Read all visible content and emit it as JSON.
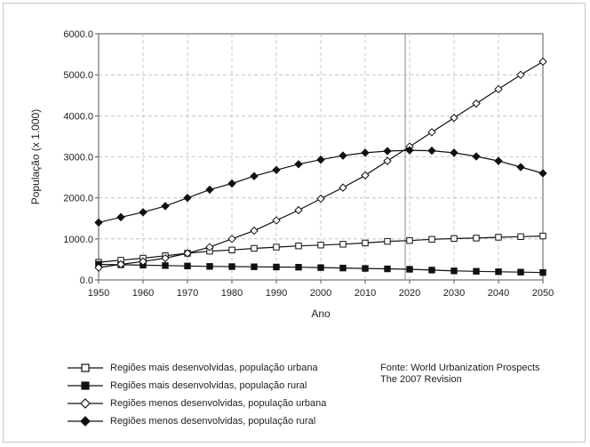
{
  "chart_data": {
    "type": "line",
    "title": "",
    "xlabel": "Ano",
    "ylabel": "População (x 1.000)",
    "xlim": [
      1950,
      2050
    ],
    "ylim": [
      0,
      6000
    ],
    "x_ticks": [
      "1950",
      "1960",
      "1970",
      "1980",
      "1990",
      "2000",
      "2010",
      "2020",
      "2030",
      "2040",
      "2050"
    ],
    "y_ticks": [
      "0.0",
      "1000.0",
      "2000.0",
      "3000.0",
      "4000.0",
      "5000.0",
      "6000.0"
    ],
    "grid": true,
    "vertical_marker_x": 2019,
    "x": [
      1950,
      1955,
      1960,
      1965,
      1970,
      1975,
      1980,
      1985,
      1990,
      1995,
      2000,
      2005,
      2010,
      2015,
      2020,
      2025,
      2030,
      2035,
      2040,
      2045,
      2050
    ],
    "series": [
      {
        "name": "Regiões mais desenvolvidas, população urbana",
        "marker": "open-square",
        "values": [
          430,
          480,
          530,
          590,
          650,
          700,
          730,
          770,
          800,
          830,
          850,
          870,
          900,
          940,
          960,
          990,
          1010,
          1020,
          1040,
          1055,
          1070
        ]
      },
      {
        "name": "Regiões mais desenvolvidas, população rural",
        "marker": "filled-square",
        "values": [
          380,
          370,
          360,
          350,
          340,
          330,
          325,
          320,
          315,
          310,
          300,
          290,
          280,
          270,
          260,
          240,
          220,
          210,
          200,
          190,
          180
        ]
      },
      {
        "name": "Regiões menos desenvolvidas, população urbana",
        "marker": "open-diamond",
        "values": [
          300,
          380,
          450,
          530,
          650,
          800,
          1000,
          1200,
          1450,
          1700,
          1980,
          2250,
          2550,
          2900,
          3250,
          3600,
          3950,
          4300,
          4650,
          5000,
          5320
        ]
      },
      {
        "name": "Regiões menos desenvolvidas, população rural",
        "marker": "filled-diamond",
        "values": [
          1400,
          1530,
          1650,
          1800,
          2000,
          2200,
          2350,
          2530,
          2680,
          2820,
          2930,
          3030,
          3100,
          3140,
          3160,
          3150,
          3100,
          3010,
          2900,
          2750,
          2600
        ]
      }
    ],
    "legend_position": "bottom-left",
    "source_lines": [
      "Fonte: World Urbanization Prospects",
      "The 2007 Revision"
    ]
  }
}
